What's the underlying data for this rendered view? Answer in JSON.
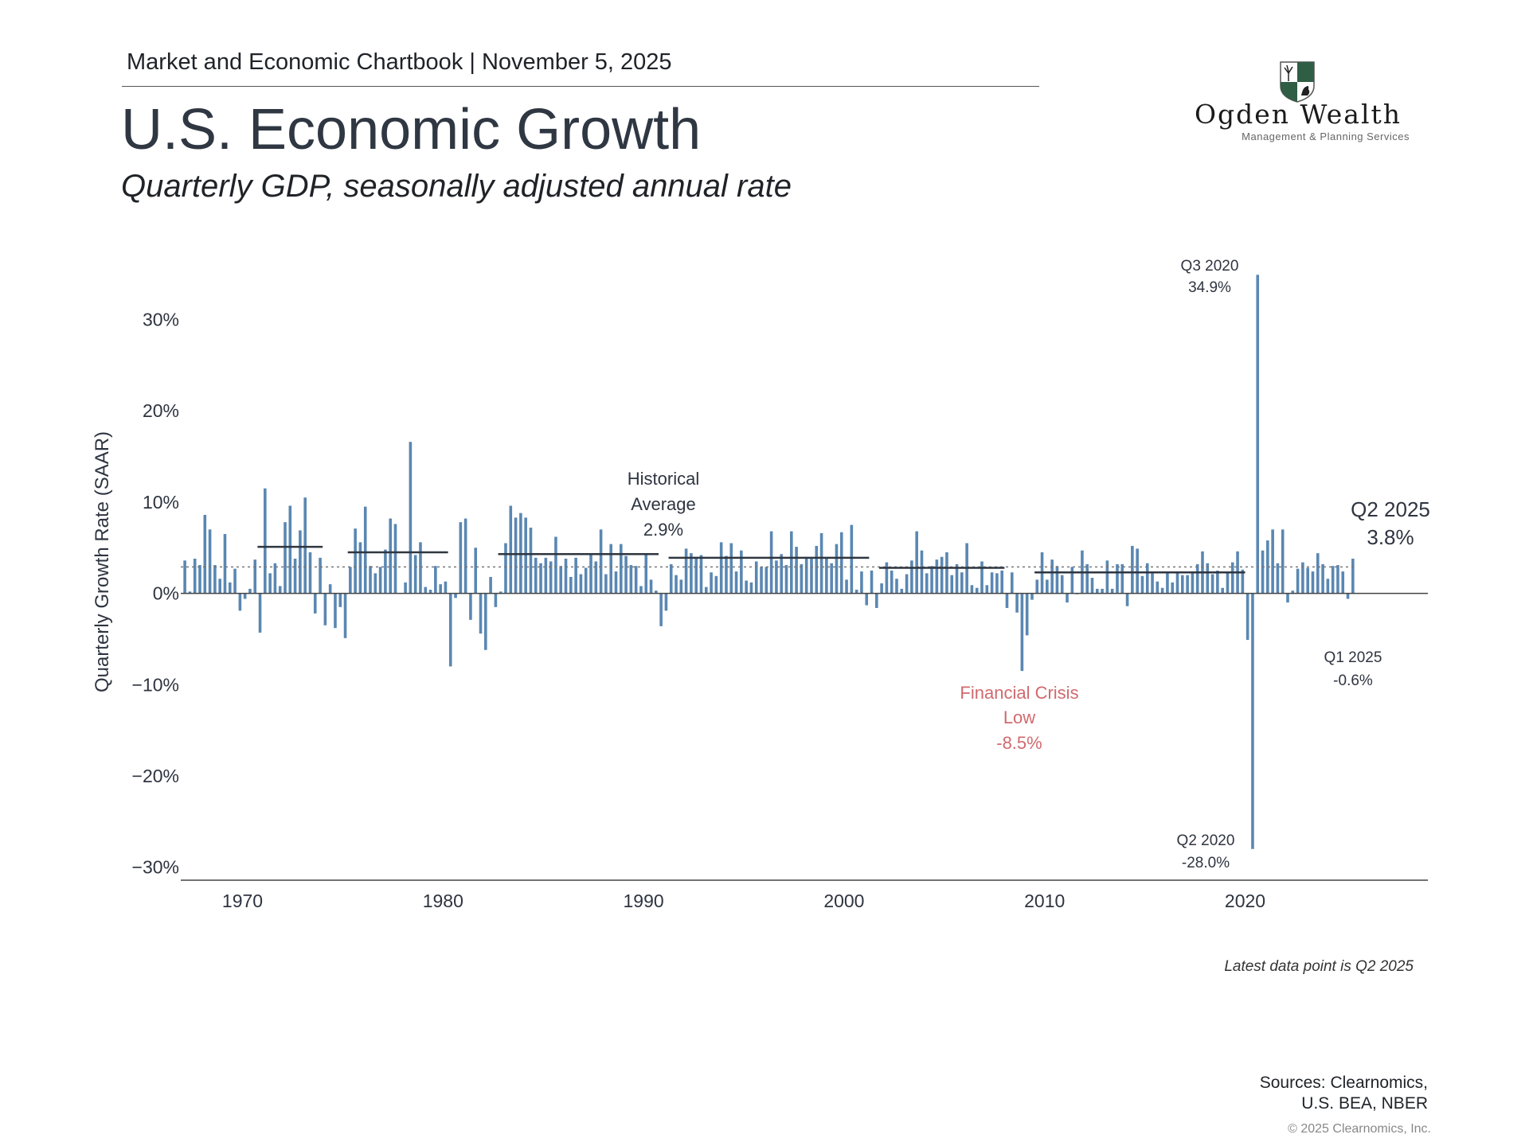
{
  "header": {
    "text": "Market and Economic Chartbook | November 5, 2025"
  },
  "title": "U.S. Economic Growth",
  "subtitle": "Quarterly GDP, seasonally adjusted annual rate",
  "logo": {
    "name": "Ogden Wealth",
    "tagline": "Management & Planning Services",
    "colors": {
      "shield": "#2f5e45",
      "text": "#1a1a1a"
    }
  },
  "footer": {
    "note": "Latest data point is Q2 2025",
    "sources_line1": "Sources: Clearnomics,",
    "sources_line2": "U.S. BEA, NBER",
    "copyright": "© 2025 Clearnomics, Inc."
  },
  "chart_data": {
    "type": "bar",
    "ylabel": "Quarterly Growth Rate (SAAR)",
    "xlabel": "",
    "ylim": [
      -30,
      35
    ],
    "yticks": [
      "30%",
      "20%",
      "10%",
      "0%",
      "−10%",
      "−20%",
      "−30%"
    ],
    "ytick_values": [
      30,
      20,
      10,
      0,
      -10,
      -20,
      -30
    ],
    "xticks": [
      "1970",
      "1980",
      "1990",
      "2000",
      "2010",
      "2020"
    ],
    "xtick_values": [
      1970,
      1980,
      1990,
      2000,
      2010,
      2020
    ],
    "start": "1967 Q1",
    "end": "2025 Q2",
    "colors": {
      "bar": "#5a87b2",
      "average_line": "#2f3640",
      "crisis_annotation": "#d06a6e",
      "text": "#2e3440"
    },
    "grid": false,
    "historical_average": 2.9,
    "values": [
      3.6,
      0.2,
      3.8,
      3.1,
      8.6,
      7.0,
      3.1,
      1.6,
      6.5,
      1.2,
      2.7,
      -1.9,
      -0.6,
      0.5,
      3.7,
      -4.3,
      11.5,
      2.2,
      3.3,
      0.8,
      7.8,
      9.6,
      3.8,
      6.9,
      10.5,
      4.5,
      -2.2,
      3.9,
      -3.5,
      1.0,
      -3.8,
      -1.5,
      -4.9,
      2.9,
      7.1,
      5.6,
      9.5,
      3.0,
      2.2,
      2.9,
      4.8,
      8.2,
      7.6,
      0.0,
      1.2,
      16.6,
      4.2,
      5.6,
      0.7,
      0.4,
      3.0,
      1.0,
      1.3,
      -8.0,
      -0.5,
      7.8,
      8.2,
      -2.9,
      5.0,
      -4.4,
      -6.2,
      1.8,
      -1.5,
      0.2,
      5.5,
      9.6,
      8.3,
      8.8,
      8.3,
      7.2,
      3.9,
      3.3,
      3.9,
      3.5,
      6.2,
      3.0,
      3.8,
      1.8,
      3.9,
      2.1,
      2.8,
      4.4,
      3.5,
      7.0,
      2.1,
      5.4,
      2.4,
      5.4,
      4.1,
      3.1,
      3.0,
      0.8,
      4.4,
      1.5,
      0.3,
      -3.6,
      -1.9,
      3.2,
      2.0,
      1.5,
      4.9,
      4.4,
      4.0,
      4.2,
      0.7,
      2.3,
      1.9,
      5.6,
      4.1,
      5.5,
      2.4,
      4.7,
      1.4,
      1.2,
      3.5,
      2.9,
      2.9,
      6.8,
      3.6,
      4.3,
      3.1,
      6.8,
      5.1,
      3.2,
      4.0,
      3.9,
      5.2,
      6.6,
      3.8,
      3.3,
      5.4,
      6.7,
      1.5,
      7.5,
      0.4,
      2.4,
      -1.3,
      2.5,
      -1.6,
      1.1,
      3.4,
      2.5,
      1.6,
      0.5,
      2.1,
      3.6,
      6.8,
      4.7,
      2.2,
      3.0,
      3.7,
      4.0,
      4.5,
      2.0,
      3.2,
      2.3,
      5.5,
      0.9,
      0.6,
      3.5,
      0.9,
      2.3,
      2.2,
      2.5,
      -1.6,
      2.3,
      -2.1,
      -8.5,
      -4.6,
      -0.7,
      1.5,
      4.5,
      1.5,
      3.7,
      3.0,
      2.0,
      -1.0,
      2.9,
      -0.1,
      4.7,
      3.2,
      1.7,
      0.5,
      0.5,
      3.6,
      0.5,
      3.2,
      3.2,
      -1.4,
      5.2,
      4.9,
      1.9,
      3.3,
      2.3,
      1.3,
      0.6,
      2.4,
      1.2,
      2.4,
      2.0,
      2.0,
      2.3,
      3.2,
      4.6,
      3.3,
      2.1,
      2.5,
      0.6,
      2.2,
      3.4,
      4.6,
      2.6,
      -5.1,
      -28.0,
      34.9,
      4.7,
      5.8,
      7.0,
      3.3,
      7.0,
      -1.0,
      0.3,
      2.7,
      3.4,
      2.8,
      2.4,
      4.4,
      3.2,
      1.6,
      3.0,
      3.1,
      2.4,
      -0.6,
      3.8
    ],
    "expansion_averages": [
      {
        "from": "1970 Q4",
        "to": "1973 Q4",
        "value": 5.1
      },
      {
        "from": "1975 Q2",
        "to": "1980 Q1",
        "value": 4.5
      },
      {
        "from": "1982 Q4",
        "to": "1990 Q3",
        "value": 4.3
      },
      {
        "from": "1991 Q2",
        "to": "2001 Q1",
        "value": 3.9
      },
      {
        "from": "2001 Q4",
        "to": "2007 Q4",
        "value": 2.8
      },
      {
        "from": "2009 Q3",
        "to": "2019 Q4",
        "value": 2.3
      }
    ],
    "annotations": {
      "peak": {
        "line1": "Q3 2020",
        "line2": "34.9%"
      },
      "trough": {
        "line1": "Q2 2020",
        "line2": "-28.0%"
      },
      "average": {
        "line1": "Historical",
        "line2": "Average",
        "line3": "2.9%"
      },
      "latest": {
        "line1": "Q2 2025",
        "line2": "3.8%"
      },
      "previous": {
        "line1": "Q1 2025",
        "line2": "-0.6%"
      },
      "crisis": {
        "line1": "Financial Crisis",
        "line2": "Low",
        "line3": "-8.5%"
      }
    }
  }
}
